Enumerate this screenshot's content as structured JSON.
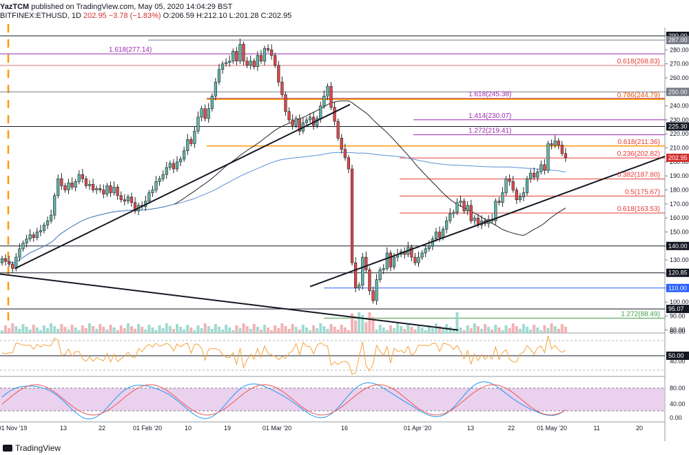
{
  "header": {
    "publisher": "YazTCM",
    "published_text": "published on TradingView.com, May 05, 2020 14:04:29 BST",
    "symbol": "BITFINEX:ETHUSD, 1D",
    "last": "202.95",
    "change": "−3.78 (−1.83%)",
    "ohlc": "O:206.59 H:212.10 L:201.28 C:202.95"
  },
  "footer": {
    "brand": "TradingView"
  },
  "colors": {
    "up": "#5fb5a8",
    "down": "#e0474c",
    "fib": "#e53935",
    "orange": "#ff9800",
    "purple": "#9c27b0",
    "blue": "#2962ff",
    "green": "#43a047",
    "ma_black": "#222222",
    "ma_blue": "#5b8fd8",
    "rsi_line": "#f6a23a",
    "stoch_k": "#2196f3",
    "stoch_d": "#ef5350",
    "stoch_band": "#e1bee7"
  },
  "chart_data": {
    "type": "candlestick",
    "symbol": "BITFINEX:ETHUSD",
    "interval": "1D",
    "price_axis": [
      290,
      280,
      270,
      260,
      250,
      240,
      230,
      220,
      210,
      200,
      190,
      180,
      170,
      160,
      150,
      140,
      130,
      120,
      110,
      100,
      90,
      80
    ],
    "time_axis": [
      "01 Nov '19",
      "13",
      "22",
      "01 Feb '20",
      "10",
      "19",
      "01 Mar '20",
      "16",
      "01 Apr '20",
      "13",
      "22",
      "01 May '20",
      "11",
      "20"
    ],
    "axis_badges": [
      {
        "value": "290.00",
        "style": "dark"
      },
      {
        "value": "287.00",
        "style": "gray"
      },
      {
        "value": "250.00",
        "style": "gray"
      },
      {
        "value": "225.30",
        "style": "dark"
      },
      {
        "value": "202.95",
        "style": "red"
      },
      {
        "value": "140.00",
        "style": "dark"
      },
      {
        "value": "120.85",
        "style": "dark"
      },
      {
        "value": "110.00",
        "style": "blue"
      },
      {
        "value": "95.07",
        "style": "dark"
      },
      {
        "value": "50.00",
        "style": "dark"
      }
    ],
    "levels": [
      {
        "label": "1.618",
        "value": "277.14",
        "color": "purple"
      },
      {
        "label": "0.618",
        "value": "268.83",
        "color": "fib"
      },
      {
        "label": "1.618",
        "value": "245.38",
        "color": "purple"
      },
      {
        "label": "0.786",
        "value": "244.79",
        "color": "fib"
      },
      {
        "label": "1.414",
        "value": "230.07",
        "color": "purple"
      },
      {
        "label": "1.272",
        "value": "219.41",
        "color": "purple"
      },
      {
        "label": "0.618",
        "value": "211.36",
        "color": "fib"
      },
      {
        "label": "0.236",
        "value": "202.82",
        "color": "fib"
      },
      {
        "label": "0.382",
        "value": "187.80",
        "color": "fib"
      },
      {
        "label": "0.5",
        "value": "175.67",
        "color": "fib"
      },
      {
        "label": "0.618",
        "value": "163.53",
        "color": "fib"
      },
      {
        "label": "1.272",
        "value": "88.49",
        "color": "green"
      }
    ],
    "closes": [
      131,
      129,
      127,
      124,
      132,
      138,
      142,
      145,
      148,
      146,
      150,
      151,
      155,
      158,
      162,
      176,
      188,
      183,
      180,
      185,
      182,
      186,
      191,
      188,
      183,
      184,
      180,
      181,
      180,
      177,
      183,
      178,
      182,
      176,
      173,
      172,
      175,
      171,
      165,
      169,
      168,
      172,
      178,
      180,
      186,
      188,
      191,
      196,
      199,
      195,
      200,
      202,
      208,
      216,
      213,
      222,
      232,
      238,
      231,
      238,
      247,
      257,
      266,
      270,
      271,
      272,
      279,
      272,
      284,
      272,
      269,
      272,
      268,
      276,
      272,
      281,
      280,
      276,
      269,
      257,
      248,
      236,
      230,
      226,
      231,
      222,
      228,
      230,
      232,
      226,
      231,
      240,
      247,
      254,
      239,
      229,
      217,
      209,
      203,
      195,
      128,
      110,
      112,
      132,
      123,
      108,
      101,
      116,
      123,
      124,
      135,
      125,
      132,
      134,
      136,
      134,
      139,
      132,
      128,
      132,
      135,
      138,
      140,
      145,
      150,
      146,
      152,
      158,
      163,
      164,
      171,
      172,
      165,
      169,
      158,
      160,
      155,
      158,
      156,
      159,
      158,
      172,
      171,
      178,
      188,
      186,
      180,
      173,
      175,
      178,
      188,
      192,
      189,
      193,
      198,
      194,
      213,
      212,
      215,
      212,
      206,
      203
    ]
  },
  "indicators": {
    "rsi_labels": [
      "80.00",
      "50.00",
      "40.00"
    ],
    "stoch_labels": [
      "80.00",
      "40.00",
      "0.00"
    ]
  }
}
